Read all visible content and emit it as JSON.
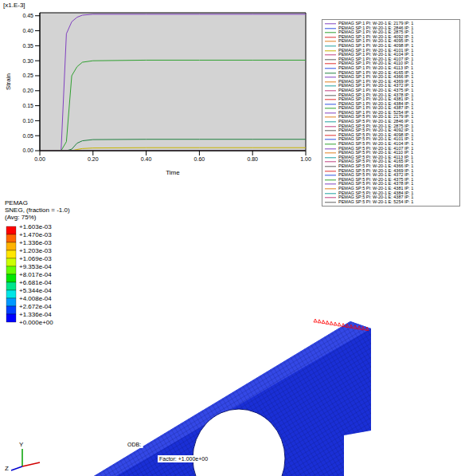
{
  "chart_data": {
    "type": "line",
    "y_scale_label": "[x1.E-3]",
    "x_label": "Time",
    "y_label": "Strain",
    "grid": false,
    "legend": "right",
    "x": [
      0,
      0.08,
      0.1,
      0.12,
      0.14,
      0.16,
      0.2,
      0.4,
      0.6,
      0.8,
      1.0
    ],
    "xlim": [
      0,
      1
    ],
    "xticks": [
      {
        "value": 0,
        "label": "0.00"
      },
      {
        "value": 0.2,
        "label": "0.20"
      },
      {
        "value": 0.4,
        "label": "0.40"
      },
      {
        "value": 0.6,
        "label": "0.60"
      },
      {
        "value": 0.8,
        "label": "0.80"
      },
      {
        "value": 1,
        "label": "1.00"
      }
    ],
    "ylim": [
      0,
      0.46
    ],
    "yticks": [
      {
        "value": 0,
        "label": "0.00"
      },
      {
        "value": 0.05,
        "label": "0.05"
      },
      {
        "value": 0.1,
        "label": "0.10"
      },
      {
        "value": 0.15,
        "label": "0.15"
      },
      {
        "value": 0.2,
        "label": "0.20"
      },
      {
        "value": 0.25,
        "label": "0.25"
      },
      {
        "value": 0.3,
        "label": "0.30"
      },
      {
        "value": 0.35,
        "label": "0.35"
      },
      {
        "value": 0.4,
        "label": "0.40"
      },
      {
        "value": 0.45,
        "label": "0.45"
      }
    ],
    "series": [
      {
        "name": "PEMAG SP:1 PI: W-20-1 E: 2179 IP: 1",
        "color": "#8040c0",
        "values": [
          0,
          0,
          0.39,
          0.43,
          0.445,
          0.452,
          0.455,
          0.455,
          0.455,
          0.455,
          0.455
        ]
      },
      {
        "name": "PEMAG SP:1 PI: W-20-1 E: 2846 IP: 1",
        "color": "#3050e0",
        "values": [
          0,
          0,
          0,
          0,
          0,
          0,
          0,
          0,
          0,
          0,
          0
        ]
      },
      {
        "name": "PEMAG SP:1 PI: W-20-1 E: 2875 IP: 1",
        "color": "#30a030",
        "values": [
          0,
          0,
          0.03,
          0.25,
          0.28,
          0.295,
          0.3,
          0.302,
          0.302,
          0.302,
          0.302
        ]
      },
      {
        "name": "PEMAG SP:1 PI: W-20-1 E: 4092 IP: 1",
        "color": "#e03030",
        "values": [
          0,
          0,
          0,
          0,
          0,
          0,
          0,
          0,
          0,
          0,
          0
        ]
      },
      {
        "name": "PEMAG SP:1 PI: W-20-1 E: 4095 IP: 1",
        "color": "#e08020",
        "values": [
          0,
          0,
          0,
          0,
          0,
          0,
          0,
          0,
          0,
          0,
          0
        ]
      },
      {
        "name": "PEMAG SP:1 PI: W-20-1 E: 4098 IP: 1",
        "color": "#20a0a0",
        "values": [
          0,
          0,
          0,
          0,
          0,
          0,
          0,
          0,
          0,
          0,
          0
        ]
      },
      {
        "name": "PEMAG SP:1 PI: W-20-1 E: 4101 IP: 1",
        "color": "#c8b400",
        "values": [
          0,
          0,
          0,
          0,
          0.004,
          0.007,
          0.009,
          0.01,
          0.01,
          0.01,
          0.01
        ]
      },
      {
        "name": "PEMAG SP:1 PI: W-20-1 E: 4104 IP: 1",
        "color": "#c04080",
        "values": [
          0,
          0,
          0,
          0,
          0,
          0,
          0,
          0,
          0,
          0,
          0
        ]
      },
      {
        "name": "PEMAG SP:1 PI: W-20-1 E: 4107 IP: 1",
        "color": "#606060",
        "values": [
          0,
          0,
          0,
          0,
          0,
          0,
          0,
          0,
          0,
          0,
          0
        ]
      },
      {
        "name": "PEMAG SP:1 PI: W-20-1 E: 4110 IP: 1",
        "color": "#e03030",
        "values": [
          0,
          0,
          0,
          0,
          0,
          0,
          0,
          0,
          0,
          0,
          0
        ]
      },
      {
        "name": "PEMAG SP:1 PI: W-20-1 E: 4113 IP: 1",
        "color": "#3050e0",
        "values": [
          0,
          0,
          0,
          0,
          0,
          0,
          0,
          0,
          0,
          0,
          0
        ]
      },
      {
        "name": "PEMAG SP:1 PI: W-20-1 E: 4165 IP: 1",
        "color": "#208040",
        "values": [
          0,
          0,
          0,
          0.005,
          0.025,
          0.033,
          0.037,
          0.038,
          0.038,
          0.038,
          0.038
        ]
      },
      {
        "name": "PEMAG SP:1 PI: W-20-1 E: 4366 IP: 1",
        "color": "#8040c0",
        "values": [
          0,
          0,
          0,
          0,
          0,
          0,
          0,
          0,
          0,
          0,
          0
        ]
      },
      {
        "name": "PEMAG SP:1 PI: W-20-1 E: 4369 IP: 1",
        "color": "#e08020",
        "values": [
          0,
          0,
          0,
          0,
          0,
          0,
          0,
          0,
          0,
          0,
          0
        ]
      },
      {
        "name": "PEMAG SP:1 PI: W-20-1 E: 4372 IP: 1",
        "color": "#20a0a0",
        "values": [
          0,
          0,
          0,
          0,
          0,
          0,
          0,
          0,
          0,
          0,
          0
        ]
      },
      {
        "name": "PEMAG SP:1 PI: W-20-1 E: 4375 IP: 1",
        "color": "#c04080",
        "values": [
          0,
          0,
          0,
          0,
          0,
          0,
          0,
          0,
          0,
          0,
          0
        ]
      },
      {
        "name": "PEMAG SP:1 PI: W-20-1 E: 4378 IP: 1",
        "color": "#606060",
        "values": [
          0,
          0,
          0,
          0,
          0,
          0,
          0,
          0,
          0,
          0,
          0
        ]
      },
      {
        "name": "PEMAG SP:1 PI: W-20-1 E: 4381 IP: 1",
        "color": "#e03030",
        "values": [
          0,
          0,
          0,
          0,
          0,
          0,
          0,
          0,
          0,
          0,
          0
        ]
      },
      {
        "name": "PEMAG SP:1 PI: W-20-1 E: 4384 IP: 1",
        "color": "#3050e0",
        "values": [
          0,
          0,
          0,
          0,
          0,
          0,
          0,
          0,
          0,
          0,
          0
        ]
      },
      {
        "name": "PEMAG SP:1 PI: W-20-1 E: 4387 IP: 1",
        "color": "#30a030",
        "values": [
          0,
          0,
          0,
          0,
          0,
          0,
          0,
          0,
          0,
          0,
          0
        ]
      },
      {
        "name": "PEMAG SP:1 PI: W-20-1 E: 5254 IP: 1",
        "color": "#8040c0",
        "values": [
          0,
          0,
          0,
          0,
          0,
          0,
          0,
          0,
          0,
          0,
          0
        ]
      },
      {
        "name": "PEMAG SP:5 PI: W-20-1 E: 2179 IP: 1",
        "color": "#e08020",
        "values": [
          0,
          0,
          0,
          0,
          0,
          0,
          0,
          0,
          0,
          0,
          0
        ]
      },
      {
        "name": "PEMAG SP:5 PI: W-20-1 E: 2846 IP: 1",
        "color": "#20a0a0",
        "values": [
          0,
          0,
          0,
          0,
          0,
          0,
          0,
          0,
          0,
          0,
          0
        ]
      },
      {
        "name": "PEMAG SP:5 PI: W-20-1 E: 2875 IP: 1",
        "color": "#c04080",
        "values": [
          0,
          0,
          0,
          0,
          0,
          0,
          0,
          0,
          0,
          0,
          0
        ]
      },
      {
        "name": "PEMAG SP:5 PI: W-20-1 E: 4092 IP: 1",
        "color": "#606060",
        "values": [
          0,
          0,
          0,
          0,
          0,
          0,
          0,
          0,
          0,
          0,
          0
        ]
      },
      {
        "name": "PEMAG SP:5 PI: W-20-1 E: 4098 IP: 1",
        "color": "#e03030",
        "values": [
          0,
          0,
          0,
          0,
          0,
          0,
          0,
          0,
          0,
          0,
          0
        ]
      },
      {
        "name": "PEMAG SP:5 PI: W-20-1 E: 4101 IP: 1",
        "color": "#3050e0",
        "values": [
          0,
          0,
          0,
          0,
          0,
          0,
          0,
          0,
          0,
          0,
          0
        ]
      },
      {
        "name": "PEMAG SP:5 PI: W-20-1 E: 4104 IP: 1",
        "color": "#30a030",
        "values": [
          0,
          0,
          0,
          0,
          0,
          0,
          0,
          0,
          0,
          0,
          0
        ]
      },
      {
        "name": "PEMAG SP:5 PI: W-20-1 E: 4107 IP: 1",
        "color": "#8040c0",
        "values": [
          0,
          0,
          0,
          0,
          0,
          0,
          0,
          0,
          0,
          0,
          0
        ]
      },
      {
        "name": "PEMAG SP:5 PI: W-20-1 E: 4110 IP: 1",
        "color": "#e08020",
        "values": [
          0,
          0,
          0,
          0,
          0,
          0,
          0,
          0,
          0,
          0,
          0
        ]
      },
      {
        "name": "PEMAG SP:5 PI: W-20-1 E: 4113 IP: 1",
        "color": "#20a0a0",
        "values": [
          0,
          0,
          0,
          0,
          0,
          0,
          0,
          0,
          0,
          0,
          0
        ]
      },
      {
        "name": "PEMAG SP:5 PI: W-20-1 E: 4165 IP: 1",
        "color": "#c04080",
        "values": [
          0,
          0,
          0,
          0,
          0,
          0,
          0,
          0,
          0,
          0,
          0
        ]
      },
      {
        "name": "PEMAG SP:5 PI: W-20-1 E: 4366 IP: 1",
        "color": "#606060",
        "values": [
          0,
          0,
          0,
          0,
          0,
          0,
          0,
          0,
          0,
          0,
          0
        ]
      },
      {
        "name": "PEMAG SP:5 PI: W-20-1 E: 4369 IP: 1",
        "color": "#e03030",
        "values": [
          0,
          0,
          0,
          0,
          0,
          0,
          0,
          0,
          0,
          0,
          0
        ]
      },
      {
        "name": "PEMAG SP:5 PI: W-20-1 E: 4372 IP: 1",
        "color": "#3050e0",
        "values": [
          0,
          0,
          0,
          0,
          0,
          0,
          0,
          0,
          0,
          0,
          0
        ]
      },
      {
        "name": "PEMAG SP:5 PI: W-20-1 E: 4375 IP: 1",
        "color": "#30a030",
        "values": [
          0,
          0,
          0,
          0,
          0,
          0,
          0,
          0,
          0,
          0,
          0
        ]
      },
      {
        "name": "PEMAG SP:5 PI: W-20-1 E: 4378 IP: 1",
        "color": "#8040c0",
        "values": [
          0,
          0,
          0,
          0,
          0,
          0,
          0,
          0,
          0,
          0,
          0
        ]
      },
      {
        "name": "PEMAG SP:5 PI: W-20-1 E: 4381 IP: 1",
        "color": "#e08020",
        "values": [
          0,
          0,
          0,
          0,
          0,
          0,
          0,
          0,
          0,
          0,
          0
        ]
      },
      {
        "name": "PEMAG SP:5 PI: W-20-1 E: 4384 IP: 1",
        "color": "#20a0a0",
        "values": [
          0,
          0,
          0,
          0,
          0,
          0,
          0,
          0,
          0,
          0,
          0
        ]
      },
      {
        "name": "PEMAG SP:5 PI: W-20-1 E: 4387 IP: 1",
        "color": "#c04080",
        "values": [
          0,
          0,
          0,
          0,
          0,
          0,
          0,
          0,
          0,
          0,
          0
        ]
      },
      {
        "name": "PEMAG SP:5 PI: W-20-1 E: 5254 IP: 1",
        "color": "#606060",
        "values": [
          0,
          0,
          0,
          0,
          0,
          0,
          0,
          0,
          0,
          0,
          0
        ]
      }
    ]
  },
  "contour_legend": {
    "title": [
      "PEMAG",
      "SNEG, (fraction = -1.0)",
      "(Avg: 75%)"
    ],
    "ticks": [
      {
        "value": 0.001603,
        "label": "+1.603e-03"
      },
      {
        "value": 0.00147,
        "label": "+1.470e-03"
      },
      {
        "value": 0.001336,
        "label": "+1.336e-03"
      },
      {
        "value": 0.001203,
        "label": "+1.203e-03"
      },
      {
        "value": 0.001069,
        "label": "+1.069e-03"
      },
      {
        "value": 0.0009353,
        "label": "+9.353e-04"
      },
      {
        "value": 0.0008017,
        "label": "+8.017e-04"
      },
      {
        "value": 0.0006681,
        "label": "+6.681e-04"
      },
      {
        "value": 0.0005344,
        "label": "+5.344e-04"
      },
      {
        "value": 0.0004008,
        "label": "+4.008e-04"
      },
      {
        "value": 0.0002672,
        "label": "+2.672e-04"
      },
      {
        "value": 0.0001336,
        "label": "+1.336e-04"
      },
      {
        "value": 0,
        "label": "+0.000e+00"
      }
    ],
    "colors": [
      "#ff0000",
      "#ff6600",
      "#ffb300",
      "#ffe600",
      "#ccff00",
      "#66ff00",
      "#00e600",
      "#00e68c",
      "#00e6e6",
      "#0099ff",
      "#0040ff",
      "#0000ff"
    ]
  },
  "model_view": {
    "color": "#1a2fd6",
    "constraint_color": "#ff0000",
    "triad": [
      "Y",
      "Z"
    ],
    "viewport_text": [
      "ODB:",
      "Factor: +1.000e+00"
    ]
  }
}
